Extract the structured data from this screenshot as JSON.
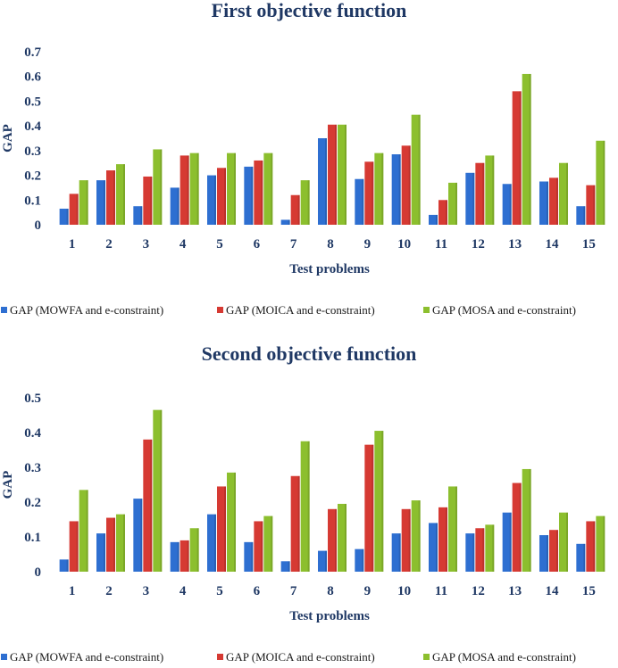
{
  "chart_data": [
    {
      "type": "bar",
      "title": "First objective function",
      "xlabel": "Test problems",
      "ylabel": "GAP",
      "ylim": [
        0,
        0.7
      ],
      "yticks": [
        "0",
        "0.1",
        "0.2",
        "0.3",
        "0.4",
        "0.5",
        "0.6",
        "0.7"
      ],
      "grid": false,
      "legend_position": "bottom",
      "categories": [
        "1",
        "2",
        "3",
        "4",
        "5",
        "6",
        "7",
        "8",
        "9",
        "10",
        "11",
        "12",
        "13",
        "14",
        "15"
      ],
      "series": [
        {
          "name": "GAP (MOWFA and e-constraint)",
          "color": "#2e6fd1",
          "values": [
            0.065,
            0.18,
            0.075,
            0.15,
            0.2,
            0.235,
            0.02,
            0.35,
            0.185,
            0.285,
            0.04,
            0.21,
            0.165,
            0.175,
            0.075
          ]
        },
        {
          "name": "GAP (MOICA and e-constraint)",
          "color": "#d63a33",
          "values": [
            0.125,
            0.22,
            0.195,
            0.28,
            0.23,
            0.26,
            0.12,
            0.405,
            0.255,
            0.32,
            0.1,
            0.25,
            0.54,
            0.19,
            0.16
          ]
        },
        {
          "name": "GAP (MOSA and e-constraint)",
          "color": "#8cbf2e",
          "values": [
            0.18,
            0.245,
            0.305,
            0.29,
            0.29,
            0.29,
            0.18,
            0.405,
            0.29,
            0.445,
            0.17,
            0.28,
            0.61,
            0.25,
            0.34
          ]
        }
      ]
    },
    {
      "type": "bar",
      "title": "Second objective function",
      "xlabel": "Test problems",
      "ylabel": "GAP",
      "ylim": [
        0,
        0.5
      ],
      "yticks": [
        "0",
        "0.1",
        "0.2",
        "0.3",
        "0.4",
        "0.5"
      ],
      "grid": false,
      "legend_position": "bottom",
      "categories": [
        "1",
        "2",
        "3",
        "4",
        "5",
        "6",
        "7",
        "8",
        "9",
        "10",
        "11",
        "12",
        "13",
        "14",
        "15"
      ],
      "series": [
        {
          "name": "GAP (MOWFA and e-constraint)",
          "color": "#2e6fd1",
          "values": [
            0.035,
            0.11,
            0.21,
            0.085,
            0.165,
            0.085,
            0.03,
            0.06,
            0.065,
            0.11,
            0.14,
            0.11,
            0.17,
            0.105,
            0.08
          ]
        },
        {
          "name": "GAP (MOICA and e-constraint)",
          "color": "#d63a33",
          "values": [
            0.145,
            0.155,
            0.38,
            0.09,
            0.245,
            0.145,
            0.275,
            0.18,
            0.365,
            0.18,
            0.185,
            0.125,
            0.255,
            0.12,
            0.145
          ]
        },
        {
          "name": "GAP (MOSA and e-constraint)",
          "color": "#8cbf2e",
          "values": [
            0.235,
            0.165,
            0.465,
            0.125,
            0.285,
            0.16,
            0.375,
            0.195,
            0.405,
            0.205,
            0.245,
            0.135,
            0.295,
            0.17,
            0.16
          ]
        }
      ]
    }
  ]
}
